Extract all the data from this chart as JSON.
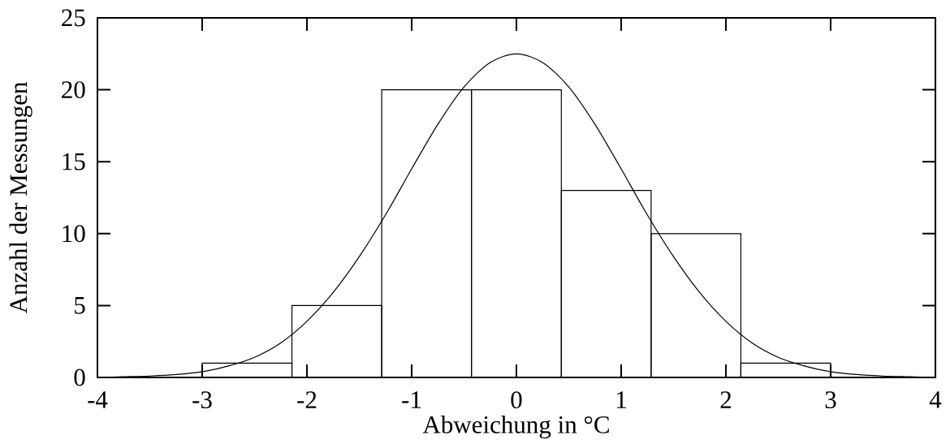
{
  "chart_data": {
    "type": "histogram",
    "xlabel": "Abweichung in °C",
    "ylabel": "Anzahl der Messungen",
    "bins": [
      -3,
      -2.143,
      -1.286,
      -0.429,
      0.429,
      1.286,
      2.143,
      3
    ],
    "values": [
      1,
      5,
      20,
      20,
      13,
      10,
      1
    ],
    "color": "#000000",
    "series": [
      {
        "type": "line",
        "color": "#000000",
        "x": [
          -4,
          -3.75,
          -3.5,
          -3.25,
          -3,
          -2.75,
          -2.5,
          -2.25,
          -2,
          -1.75,
          -1.5,
          -1.25,
          -1,
          -0.75,
          -0.5,
          -0.25,
          0,
          0.25,
          0.5,
          0.75,
          1,
          1.25,
          1.5,
          1.75,
          2,
          2.25,
          2.5,
          2.75,
          3,
          3.25,
          3.5,
          3.75,
          4
        ],
        "values": [
          0.0,
          0.05,
          0.1,
          0.2,
          0.4,
          0.8,
          1.4,
          2.4,
          3.9,
          5.9,
          8.4,
          11.3,
          14.5,
          17.6,
          20.2,
          21.9,
          22.5,
          21.9,
          20.2,
          17.6,
          14.5,
          11.3,
          8.4,
          5.9,
          3.9,
          2.4,
          1.4,
          0.8,
          0.4,
          0.2,
          0.1,
          0.05,
          0.0
        ]
      }
    ],
    "xlim": [
      -4,
      4
    ],
    "ylim": [
      0,
      25
    ],
    "xticks": [
      -4,
      -3,
      -2,
      -1,
      0,
      1,
      2,
      3,
      4
    ],
    "yticks": [
      0,
      5,
      10,
      15,
      20,
      25
    ]
  }
}
